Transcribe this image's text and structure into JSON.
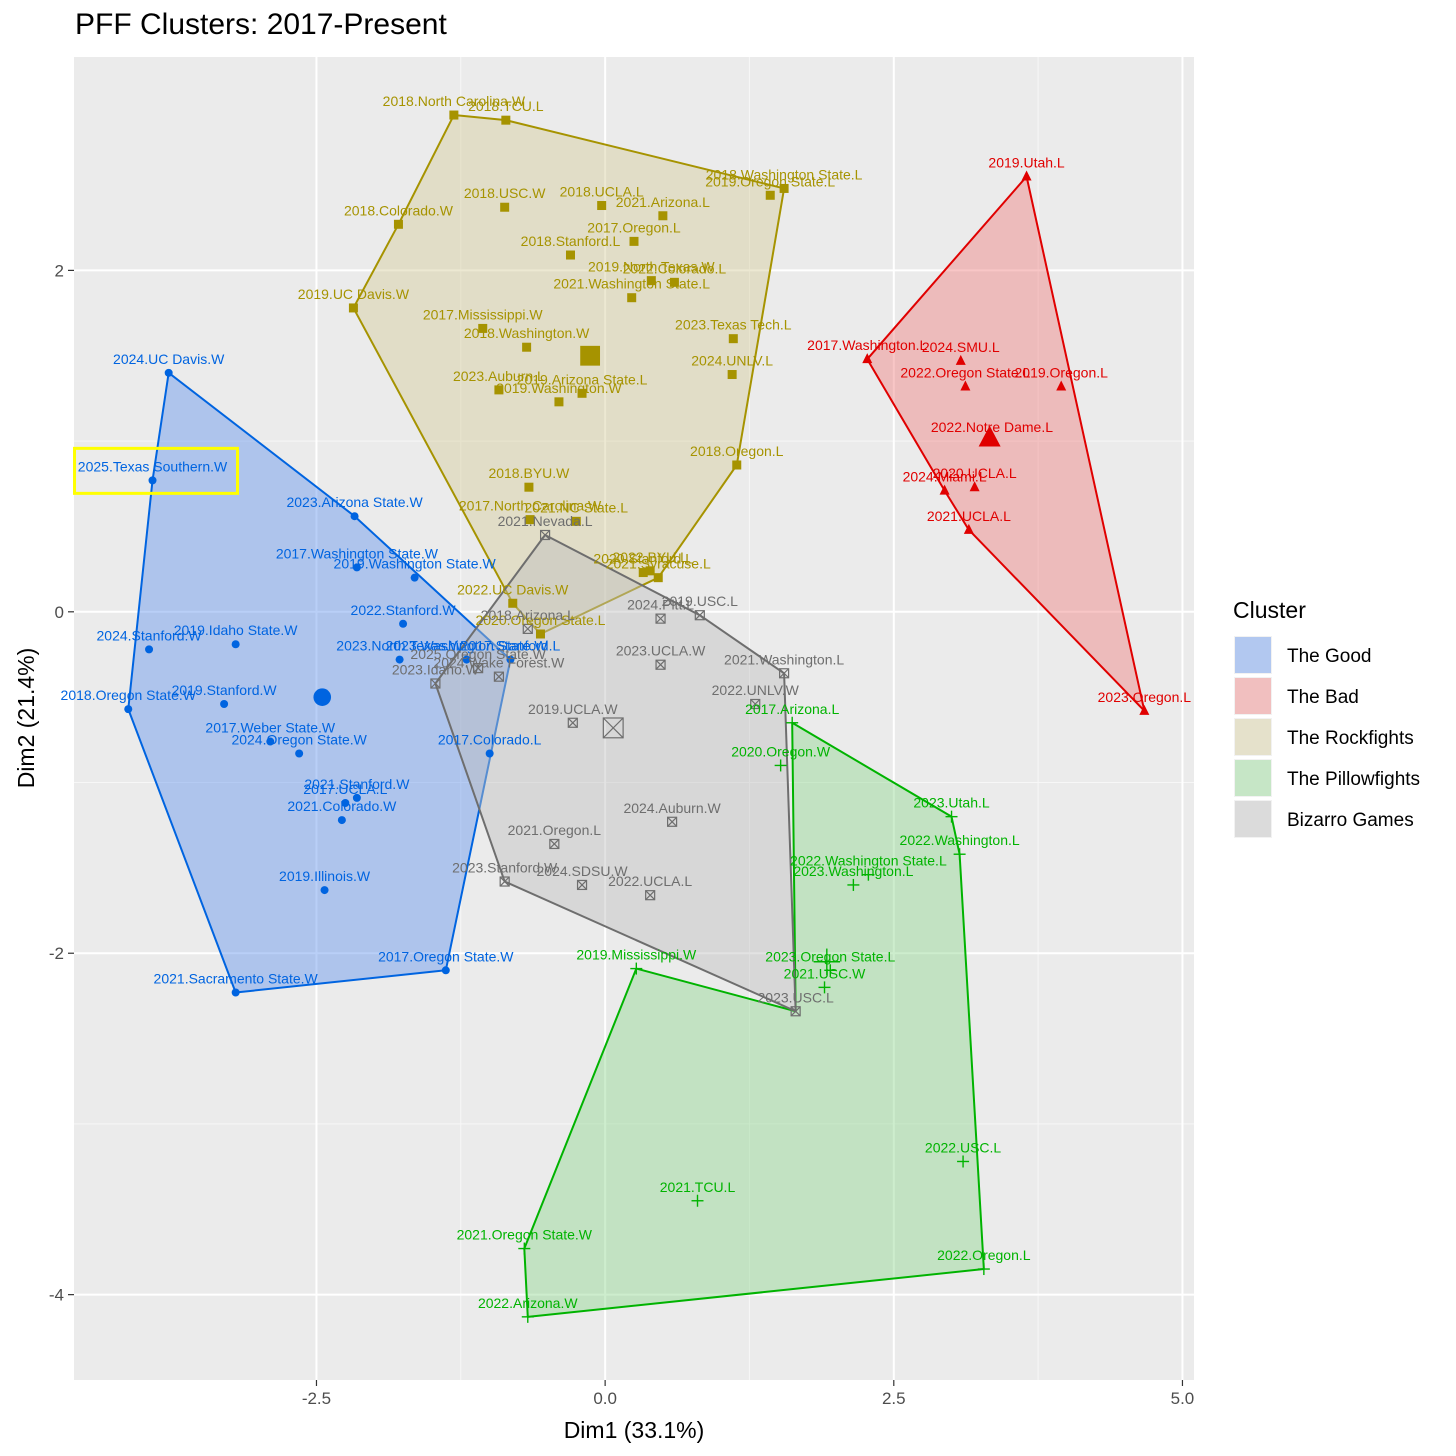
{
  "chart_data": {
    "type": "scatter",
    "title": "PFF Clusters: 2017-Present",
    "xlabel": "Dim1 (33.1%)",
    "ylabel": "Dim2 (21.4%)",
    "xlim": [
      -4.6,
      5.1
    ],
    "ylim": [
      -4.5,
      3.25
    ],
    "x_ticks": [
      -2.5,
      0.0,
      2.5,
      5.0
    ],
    "x_tick_labels": [
      "-2.5",
      "0.0",
      "2.5",
      "5.0"
    ],
    "y_ticks": [
      -4,
      -2,
      0,
      2
    ],
    "y_tick_labels": [
      "-4",
      "-2",
      "0",
      "2"
    ],
    "grid": true,
    "legend": {
      "title": "Cluster",
      "position": "right"
    },
    "highlight_label": "2025.Texas Southern.W",
    "series": [
      {
        "name": "The Good",
        "color": "#0064e0",
        "fill": "#6495ed",
        "shape": "circle",
        "centroid": [
          -2.45,
          -0.5
        ],
        "hull": [
          [
            -3.78,
            1.4
          ],
          [
            -3.92,
            0.77
          ],
          [
            -4.13,
            -0.57
          ],
          [
            -3.2,
            -2.23
          ],
          [
            -1.38,
            -2.1
          ],
          [
            -0.82,
            -0.28
          ],
          [
            -2.17,
            0.56
          ]
        ],
        "points": [
          {
            "label": "2024.UC Davis.W",
            "x": -3.78,
            "y": 1.4
          },
          {
            "label": "2025.Texas Southern.W",
            "x": -3.92,
            "y": 0.77
          },
          {
            "label": "2023.Arizona State.W",
            "x": -2.17,
            "y": 0.56
          },
          {
            "label": "2017.Washington State.W",
            "x": -2.15,
            "y": 0.26
          },
          {
            "label": "2019.Washington State.W",
            "x": -1.65,
            "y": 0.2
          },
          {
            "label": "2022.Stanford.W",
            "x": -1.75,
            "y": -0.07
          },
          {
            "label": "2024.Stanford.W",
            "x": -3.95,
            "y": -0.22
          },
          {
            "label": "2019.Idaho State.W",
            "x": -3.2,
            "y": -0.19
          },
          {
            "label": "2023.Washington State.W",
            "x": -1.2,
            "y": -0.28
          },
          {
            "label": "2023.North Texas.W",
            "x": -1.78,
            "y": -0.28
          },
          {
            "label": "2017.Stanford.L",
            "x": -0.82,
            "y": -0.28
          },
          {
            "label": "2018.Oregon State.W",
            "x": -4.13,
            "y": -0.57
          },
          {
            "label": "2019.Stanford.W",
            "x": -3.3,
            "y": -0.54
          },
          {
            "label": "2024.Oregon State.W",
            "x": -2.65,
            "y": -0.83
          },
          {
            "label": "2017.Weber State.W",
            "x": -2.9,
            "y": -0.76
          },
          {
            "label": "2017.Colorado.L",
            "x": -1.0,
            "y": -0.83
          },
          {
            "label": "2021.Stanford.W",
            "x": -2.15,
            "y": -1.09
          },
          {
            "label": "2017.UCLA.L",
            "x": -2.25,
            "y": -1.12
          },
          {
            "label": "2021.Colorado.W",
            "x": -2.28,
            "y": -1.22
          },
          {
            "label": "2019.Illinois.W",
            "x": -2.43,
            "y": -1.63
          },
          {
            "label": "2017.Oregon State.W",
            "x": -1.38,
            "y": -2.1
          },
          {
            "label": "2021.Sacramento State.W",
            "x": -3.2,
            "y": -2.23
          }
        ]
      },
      {
        "name": "The Bad",
        "color": "#e00000",
        "fill": "#f08080",
        "shape": "triangle",
        "centroid": [
          3.33,
          1.02
        ],
        "hull": [
          [
            3.65,
            2.55
          ],
          [
            4.67,
            -0.58
          ],
          [
            3.15,
            0.48
          ],
          [
            2.94,
            0.71
          ],
          [
            2.27,
            1.48
          ]
        ],
        "points": [
          {
            "label": "2019.Utah.L",
            "x": 3.65,
            "y": 2.55
          },
          {
            "label": "2017.Washington.L",
            "x": 2.27,
            "y": 1.48
          },
          {
            "label": "2024.SMU.L",
            "x": 3.08,
            "y": 1.47
          },
          {
            "label": "2022.Oregon State.L",
            "x": 3.12,
            "y": 1.32
          },
          {
            "label": "2019.Oregon.L",
            "x": 3.95,
            "y": 1.32
          },
          {
            "label": "2022.Notre Dame.L",
            "x": 3.35,
            "y": 1.0
          },
          {
            "label": "2020.UCLA.L",
            "x": 3.2,
            "y": 0.73
          },
          {
            "label": "2024.Miami.L",
            "x": 2.94,
            "y": 0.71
          },
          {
            "label": "2021.UCLA.L",
            "x": 3.15,
            "y": 0.48
          },
          {
            "label": "2023.Oregon.L",
            "x": 4.67,
            "y": -0.58
          }
        ]
      },
      {
        "name": "The Rockfights",
        "color": "#a69300",
        "fill": "#d4cc9b",
        "shape": "square",
        "centroid": [
          -0.13,
          1.5
        ],
        "hull": [
          [
            -1.31,
            2.91
          ],
          [
            -0.86,
            2.88
          ],
          [
            1.55,
            2.48
          ],
          [
            1.14,
            0.86
          ],
          [
            0.46,
            0.2
          ],
          [
            -0.56,
            -0.13
          ],
          [
            -0.8,
            0.05
          ],
          [
            -2.18,
            1.78
          ],
          [
            -1.79,
            2.27
          ]
        ],
        "points": [
          {
            "label": "2018.North Carolina.W",
            "x": -1.31,
            "y": 2.91
          },
          {
            "label": "2018.TCU.L",
            "x": -0.86,
            "y": 2.88
          },
          {
            "label": "2019.Oregon State.L",
            "x": 1.43,
            "y": 2.44
          },
          {
            "label": "2018.Washington State.L",
            "x": 1.55,
            "y": 2.48
          },
          {
            "label": "2018.USC.W",
            "x": -0.87,
            "y": 2.37
          },
          {
            "label": "2018.UCLA.L",
            "x": -0.03,
            "y": 2.38
          },
          {
            "label": "2021.Arizona.L",
            "x": 0.5,
            "y": 2.32
          },
          {
            "label": "2018.Colorado.W",
            "x": -1.79,
            "y": 2.27
          },
          {
            "label": "2017.Oregon.L",
            "x": 0.25,
            "y": 2.17
          },
          {
            "label": "2018.Stanford.L",
            "x": -0.3,
            "y": 2.09
          },
          {
            "label": "2019.North Texas.W",
            "x": 0.4,
            "y": 1.94
          },
          {
            "label": "2022.Colorado.L",
            "x": 0.6,
            "y": 1.93
          },
          {
            "label": "2021.Washington State.L",
            "x": 0.23,
            "y": 1.84
          },
          {
            "label": "2019.UC Davis.W",
            "x": -2.18,
            "y": 1.78
          },
          {
            "label": "2017.Mississippi.W",
            "x": -1.06,
            "y": 1.66
          },
          {
            "label": "2023.Texas Tech.L",
            "x": 1.11,
            "y": 1.6
          },
          {
            "label": "2018.Washington.W",
            "x": -0.68,
            "y": 1.55
          },
          {
            "label": "2024.UNLV.L",
            "x": 1.1,
            "y": 1.39
          },
          {
            "label": "2023.Auburn.L",
            "x": -0.92,
            "y": 1.3
          },
          {
            "label": "2019.Arizona State.L",
            "x": -0.2,
            "y": 1.28
          },
          {
            "label": "2019.Washington.W",
            "x": -0.4,
            "y": 1.23
          },
          {
            "label": "2018.Oregon.L",
            "x": 1.14,
            "y": 0.86
          },
          {
            "label": "2018.BYU.W",
            "x": -0.66,
            "y": 0.73
          },
          {
            "label": "2017.North Carolina.W",
            "x": -0.65,
            "y": 0.54
          },
          {
            "label": "2021.NC State.L",
            "x": -0.25,
            "y": 0.53
          },
          {
            "label": "2020.Stanford.L",
            "x": 0.33,
            "y": 0.23
          },
          {
            "label": "2022.BYU.L",
            "x": 0.39,
            "y": 0.24
          },
          {
            "label": "2021.Syracuse.L",
            "x": 0.46,
            "y": 0.2
          },
          {
            "label": "2022.UC Davis.W",
            "x": -0.8,
            "y": 0.05
          },
          {
            "label": "2020.Oregon State.L",
            "x": -0.56,
            "y": -0.13
          }
        ]
      },
      {
        "name": "The Pillowfights",
        "color": "#00b300",
        "fill": "#90d890",
        "shape": "plus",
        "centroid": [
          1.92,
          -2.05
        ],
        "hull": [
          [
            1.62,
            -0.65
          ],
          [
            3.0,
            -1.2
          ],
          [
            3.07,
            -1.42
          ],
          [
            3.28,
            -3.85
          ],
          [
            -0.67,
            -4.13
          ],
          [
            -0.7,
            -3.73
          ],
          [
            0.27,
            -2.09
          ],
          [
            1.65,
            -2.34
          ]
        ],
        "points": [
          {
            "label": "2017.Arizona.L",
            "x": 1.62,
            "y": -0.65
          },
          {
            "label": "2020.Oregon.W",
            "x": 1.52,
            "y": -0.9
          },
          {
            "label": "2023.Utah.L",
            "x": 3.0,
            "y": -1.2
          },
          {
            "label": "2022.Washington.L",
            "x": 3.07,
            "y": -1.42
          },
          {
            "label": "2022.Washington State.L",
            "x": 2.28,
            "y": -1.54
          },
          {
            "label": "2023.Washington.L",
            "x": 2.15,
            "y": -1.6
          },
          {
            "label": "2019.Mississippi.W",
            "x": 0.27,
            "y": -2.09
          },
          {
            "label": "2023.Oregon State.L",
            "x": 1.95,
            "y": -2.1
          },
          {
            "label": "2021.USC.W",
            "x": 1.9,
            "y": -2.2
          },
          {
            "label": "2022.USC.L",
            "x": 3.1,
            "y": -3.22
          },
          {
            "label": "2021.TCU.L",
            "x": 0.8,
            "y": -3.45
          },
          {
            "label": "2021.Oregon State.W",
            "x": -0.7,
            "y": -3.73
          },
          {
            "label": "2022.Oregon.L",
            "x": 3.28,
            "y": -3.85
          },
          {
            "label": "2022.Arizona.W",
            "x": -0.67,
            "y": -4.13
          }
        ]
      },
      {
        "name": "Bizarro Games",
        "color": "#6e6e6e",
        "fill": "#bebebe",
        "shape": "square-cross",
        "centroid": [
          0.07,
          -0.68
        ],
        "hull": [
          [
            -0.52,
            0.45
          ],
          [
            0.82,
            -0.02
          ],
          [
            1.55,
            -0.36
          ],
          [
            1.65,
            -2.34
          ],
          [
            -0.87,
            -1.58
          ],
          [
            -1.47,
            -0.42
          ]
        ],
        "points": [
          {
            "label": "2021.Nevada.L",
            "x": -0.52,
            "y": 0.45
          },
          {
            "label": "2018.Arizona.L",
            "x": -0.67,
            "y": -0.1
          },
          {
            "label": "2024.Pitt.L",
            "x": 0.48,
            "y": -0.04
          },
          {
            "label": "2019.USC.L",
            "x": 0.82,
            "y": -0.02
          },
          {
            "label": "2024.Wake Forest.W",
            "x": -0.92,
            "y": -0.38
          },
          {
            "label": "2025.Oregon State.W",
            "x": -1.1,
            "y": -0.33
          },
          {
            "label": "2023.UCLA.W",
            "x": 0.48,
            "y": -0.31
          },
          {
            "label": "2021.Washington.L",
            "x": 1.55,
            "y": -0.36
          },
          {
            "label": "2023.Idaho.W",
            "x": -1.47,
            "y": -0.42
          },
          {
            "label": "2022.UNLV.W",
            "x": 1.3,
            "y": -0.54
          },
          {
            "label": "2019.UCLA.W",
            "x": -0.28,
            "y": -0.65
          },
          {
            "label": "2024.Auburn.W",
            "x": 0.58,
            "y": -1.23
          },
          {
            "label": "2021.Oregon.L",
            "x": -0.44,
            "y": -1.36
          },
          {
            "label": "2023.Stanford.W",
            "x": -0.87,
            "y": -1.58
          },
          {
            "label": "2024.SDSU.W",
            "x": -0.2,
            "y": -1.6
          },
          {
            "label": "2022.UCLA.L",
            "x": 0.39,
            "y": -1.66
          },
          {
            "label": "2023.USC.L",
            "x": 1.65,
            "y": -2.34
          }
        ]
      }
    ]
  }
}
